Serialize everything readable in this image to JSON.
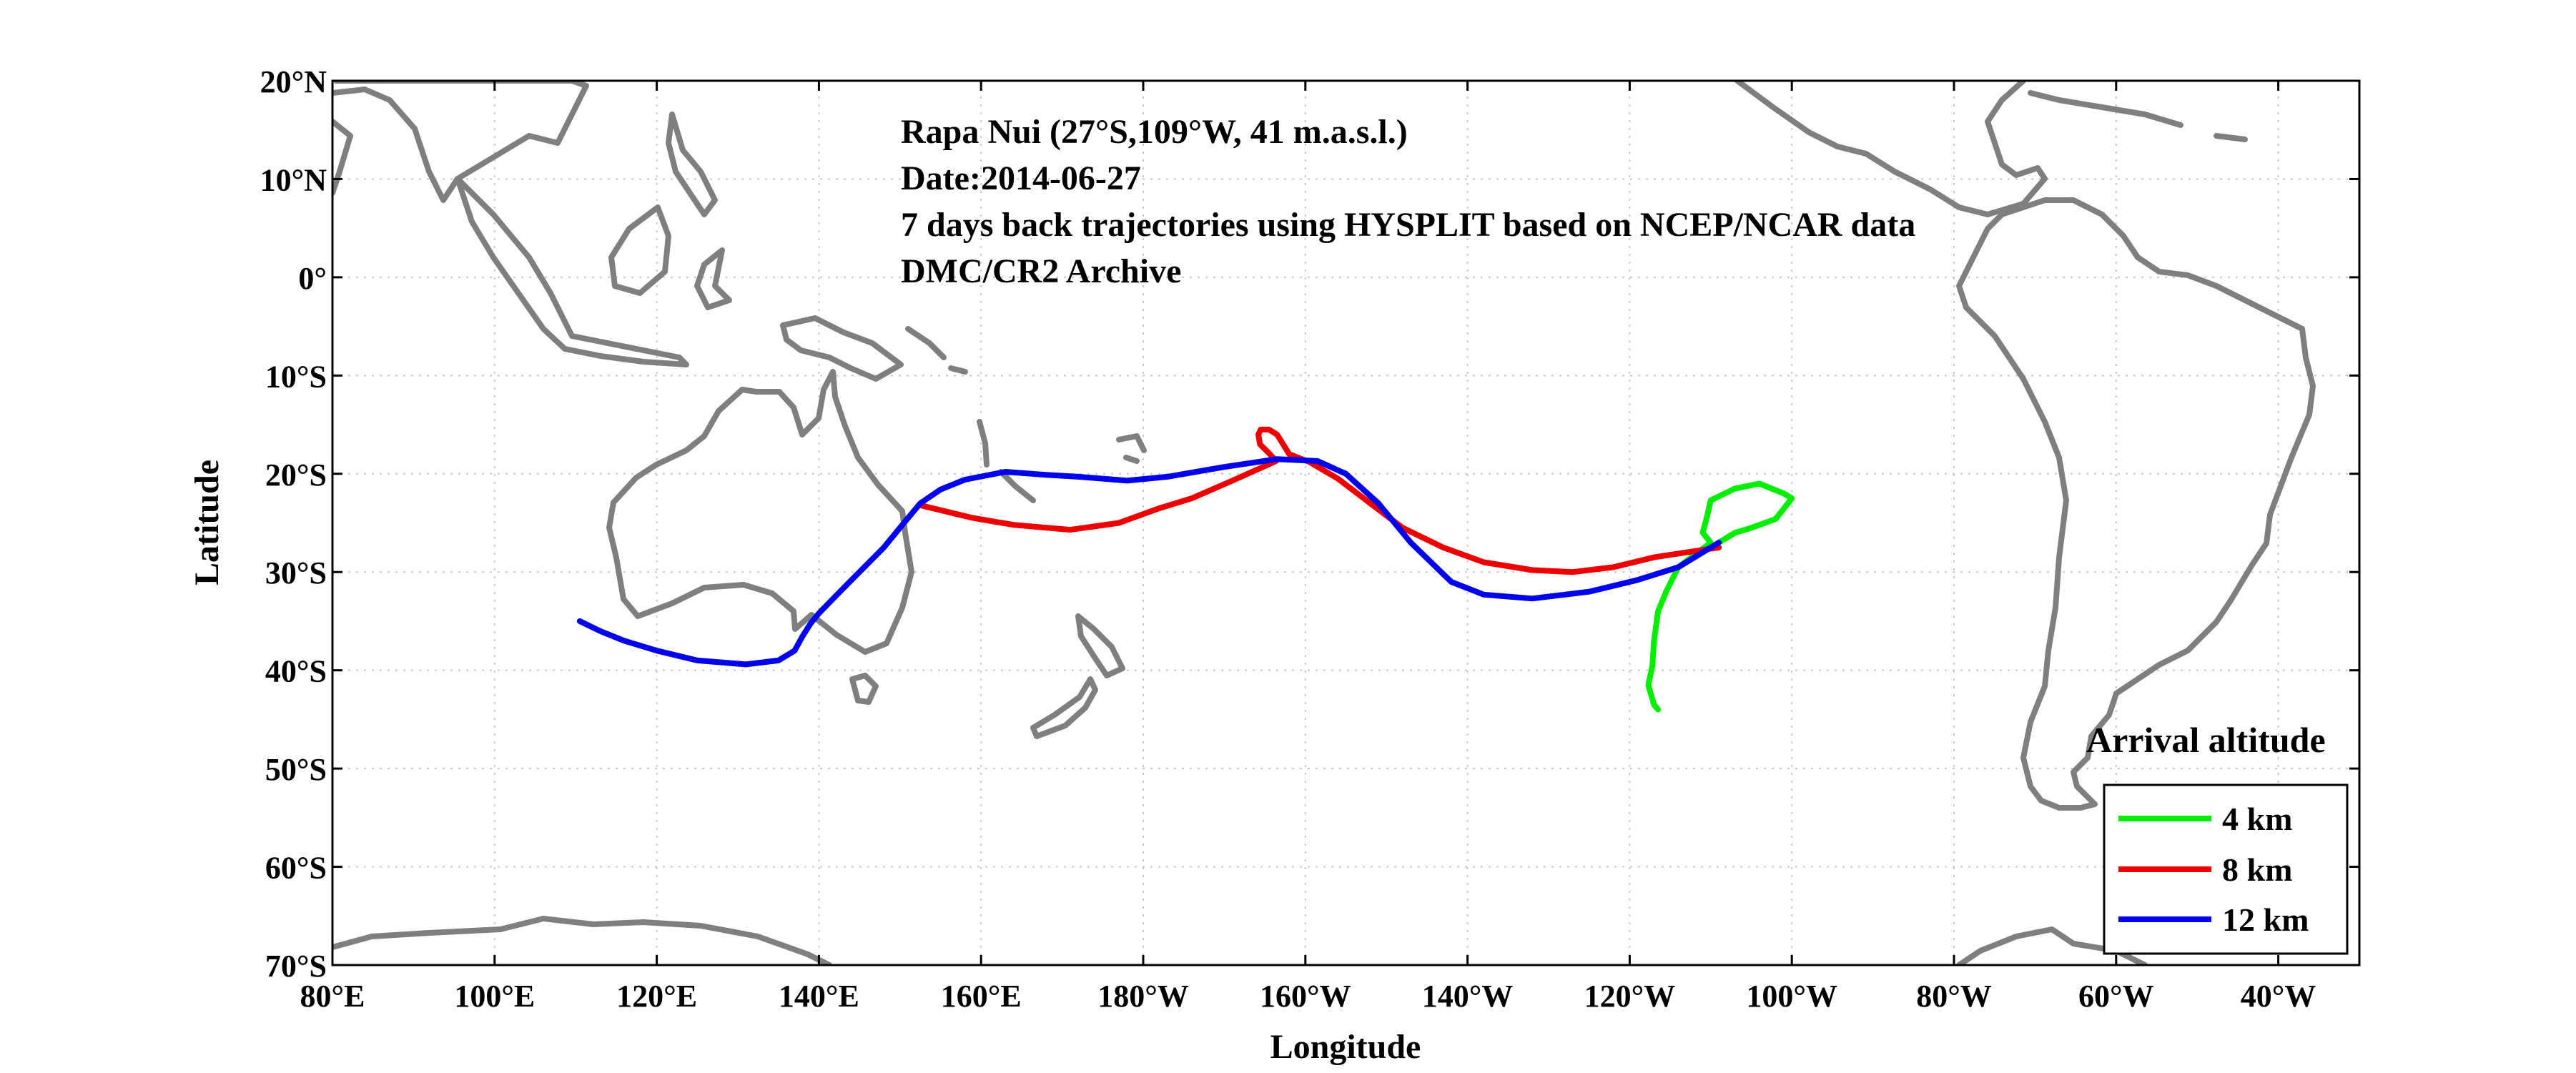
{
  "chart_data": {
    "type": "line",
    "title_lines": [
      "Rapa Nui (27°S,109°W, 41 m.a.s.l.)",
      "Date:2014-06-27",
      "7 days back trajectories using HYSPLIT based on NCEP/NCAR data",
      "DMC/CR2 Archive"
    ],
    "xlabel": "Longitude",
    "ylabel": "Latitude",
    "xlim": [
      80,
      330
    ],
    "ylim": [
      -70,
      20
    ],
    "grid": true,
    "x_ticks": [
      {
        "value": 80,
        "label": "80°E"
      },
      {
        "value": 100,
        "label": "100°E"
      },
      {
        "value": 120,
        "label": "120°E"
      },
      {
        "value": 140,
        "label": "140°E"
      },
      {
        "value": 160,
        "label": "160°E"
      },
      {
        "value": 180,
        "label": "180°W"
      },
      {
        "value": 200,
        "label": "160°W"
      },
      {
        "value": 220,
        "label": "140°W"
      },
      {
        "value": 240,
        "label": "120°W"
      },
      {
        "value": 260,
        "label": "100°W"
      },
      {
        "value": 280,
        "label": "80°W"
      },
      {
        "value": 300,
        "label": "60°W"
      },
      {
        "value": 320,
        "label": "40°W"
      }
    ],
    "y_ticks": [
      {
        "value": 20,
        "label": "20°N"
      },
      {
        "value": 10,
        "label": "10°N"
      },
      {
        "value": 0,
        "label": "0°"
      },
      {
        "value": -10,
        "label": "10°S"
      },
      {
        "value": -20,
        "label": "20°S"
      },
      {
        "value": -30,
        "label": "30°S"
      },
      {
        "value": -40,
        "label": "40°S"
      },
      {
        "value": -50,
        "label": "50°S"
      },
      {
        "value": -60,
        "label": "60°S"
      },
      {
        "value": -70,
        "label": "70°S"
      }
    ],
    "legend": {
      "title": "Arrival altitude",
      "position": "bottom-right"
    },
    "series": [
      {
        "name": "4 km",
        "color": "#00ee00",
        "points": [
          [
            251,
            -27
          ],
          [
            253,
            -26
          ],
          [
            255,
            -25.5
          ],
          [
            258,
            -24.6
          ],
          [
            260,
            -22.5
          ],
          [
            259,
            -22
          ],
          [
            256,
            -21
          ],
          [
            253,
            -21.5
          ],
          [
            250,
            -22.7
          ],
          [
            249.5,
            -24.5
          ],
          [
            249,
            -26
          ],
          [
            250,
            -27
          ],
          [
            246,
            -29.5
          ],
          [
            244.5,
            -32
          ],
          [
            243.5,
            -34
          ],
          [
            243,
            -37
          ],
          [
            242.8,
            -39.5
          ],
          [
            242.3,
            -41.5
          ],
          [
            243,
            -43.5
          ],
          [
            243.5,
            -44
          ]
        ]
      },
      {
        "name": "8 km",
        "color": "#ee0000",
        "points": [
          [
            251,
            -27.5
          ],
          [
            247,
            -28
          ],
          [
            243,
            -28.5
          ],
          [
            238,
            -29.5
          ],
          [
            233,
            -30
          ],
          [
            228,
            -29.8
          ],
          [
            222,
            -29
          ],
          [
            217,
            -27.5
          ],
          [
            212,
            -25.5
          ],
          [
            208,
            -23
          ],
          [
            204,
            -20.5
          ],
          [
            200.5,
            -18.8
          ],
          [
            198,
            -18
          ],
          [
            197.5,
            -17.3
          ],
          [
            196.5,
            -16
          ],
          [
            195.5,
            -15.5
          ],
          [
            194.5,
            -15.5
          ],
          [
            194.2,
            -16
          ],
          [
            194.4,
            -17
          ],
          [
            195.5,
            -17.9
          ],
          [
            196.4,
            -18.7
          ],
          [
            191,
            -20.7
          ],
          [
            186,
            -22.5
          ],
          [
            182,
            -23.5
          ],
          [
            177,
            -25
          ],
          [
            171,
            -25.7
          ],
          [
            164,
            -25.2
          ],
          [
            159,
            -24.5
          ],
          [
            152.5,
            -23.2
          ]
        ]
      },
      {
        "name": "12 km",
        "color": "#0000ee",
        "points": [
          [
            251,
            -27
          ],
          [
            246,
            -29.5
          ],
          [
            241,
            -30.8
          ],
          [
            235,
            -32
          ],
          [
            228,
            -32.7
          ],
          [
            222,
            -32.3
          ],
          [
            218,
            -31
          ],
          [
            213,
            -27
          ],
          [
            209,
            -23
          ],
          [
            205,
            -20
          ],
          [
            201.5,
            -18.7
          ],
          [
            196.5,
            -18.5
          ],
          [
            190,
            -19.3
          ],
          [
            183,
            -20.3
          ],
          [
            178,
            -20.7
          ],
          [
            172,
            -20.3
          ],
          [
            168,
            -20.1
          ],
          [
            163,
            -19.8
          ],
          [
            158,
            -20.6
          ],
          [
            155,
            -21.6
          ],
          [
            152.5,
            -23
          ],
          [
            151,
            -24.5
          ],
          [
            148,
            -27.5
          ],
          [
            145,
            -30
          ],
          [
            142,
            -32.5
          ],
          [
            140,
            -34.2
          ],
          [
            139,
            -35.2
          ],
          [
            138,
            -36.5
          ],
          [
            137,
            -38
          ],
          [
            135,
            -39
          ],
          [
            131,
            -39.4
          ],
          [
            125,
            -39
          ],
          [
            120,
            -38
          ],
          [
            116,
            -37
          ],
          [
            113,
            -36
          ],
          [
            110.5,
            -35
          ]
        ]
      }
    ]
  },
  "basemap": {
    "coast_color": "#7f7f7f"
  }
}
